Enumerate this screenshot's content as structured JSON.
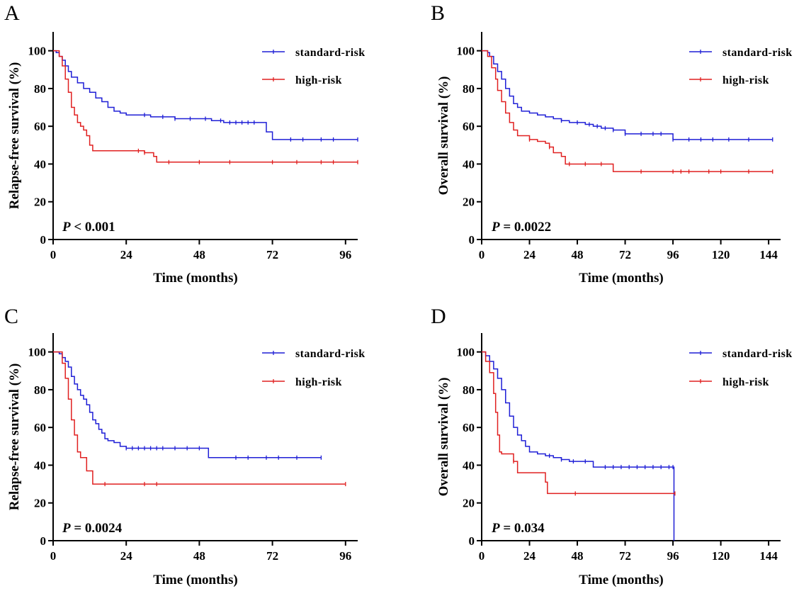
{
  "colors": {
    "standard": "#1f1fd6",
    "high": "#e02020",
    "axis": "#000000"
  },
  "chart_data": [
    {
      "panel": "A",
      "type": "line",
      "xlabel": "Time (months)",
      "ylabel": "Relapse-free survival (%)",
      "xlim": [
        0,
        100
      ],
      "ylim": [
        0,
        110
      ],
      "xticks": [
        0,
        24,
        48,
        72,
        96
      ],
      "yticks": [
        0,
        20,
        40,
        60,
        80,
        100
      ],
      "p_label": "P",
      "p_text": " < 0.001",
      "legend_position": "top-right",
      "series": [
        {
          "name": "standard-risk",
          "color": "#1f1fd6",
          "x": [
            0,
            1,
            2,
            3,
            4,
            5,
            6,
            8,
            10,
            12,
            14,
            16,
            18,
            20,
            22,
            24,
            28,
            32,
            36,
            40,
            44,
            48,
            52,
            56,
            60,
            64,
            69,
            70,
            72,
            84,
            100
          ],
          "y": [
            100,
            99,
            97,
            95,
            92,
            89,
            86,
            83,
            80,
            78,
            75,
            73,
            70,
            68,
            67,
            66,
            66,
            65,
            65,
            64,
            64,
            64,
            63,
            62,
            62,
            62,
            62,
            57,
            53,
            53,
            53
          ],
          "censor_x": [
            30,
            36,
            40,
            45,
            50,
            55,
            58,
            60,
            62,
            64,
            66,
            78,
            82,
            88,
            92,
            100
          ]
        },
        {
          "name": "high-risk",
          "color": "#e02020",
          "x": [
            0,
            2,
            3,
            4,
            5,
            6,
            7,
            8,
            9,
            10,
            11,
            12,
            13,
            20,
            28,
            30,
            33,
            34,
            40,
            60,
            80,
            100
          ],
          "y": [
            100,
            97,
            92,
            85,
            78,
            70,
            66,
            62,
            60,
            58,
            55,
            50,
            47,
            47,
            47,
            46,
            44,
            41,
            41,
            41,
            41,
            41
          ],
          "censor_x": [
            28,
            30,
            38,
            48,
            58,
            72,
            80,
            88,
            92,
            100
          ]
        }
      ]
    },
    {
      "panel": "B",
      "type": "line",
      "xlabel": "Time (months)",
      "ylabel": "Overall survival (%)",
      "xlim": [
        0,
        150
      ],
      "ylim": [
        0,
        110
      ],
      "xticks": [
        0,
        24,
        48,
        72,
        96,
        120,
        144
      ],
      "yticks": [
        0,
        20,
        40,
        60,
        80,
        100
      ],
      "p_label": "P",
      "p_text": " = 0.0022",
      "legend_position": "top-right",
      "series": [
        {
          "name": "standard-risk",
          "color": "#1f1fd6",
          "x": [
            0,
            3,
            4,
            6,
            8,
            10,
            12,
            14,
            16,
            18,
            20,
            24,
            28,
            32,
            36,
            40,
            44,
            48,
            52,
            56,
            60,
            66,
            72,
            84,
            90,
            96,
            110,
            130,
            146
          ],
          "y": [
            100,
            99,
            97,
            93,
            89,
            85,
            80,
            76,
            72,
            70,
            68,
            67,
            66,
            65,
            64,
            63,
            62,
            62,
            61,
            60,
            59,
            58,
            56,
            56,
            56,
            53,
            53,
            53,
            53
          ],
          "censor_x": [
            40,
            48,
            54,
            58,
            62,
            66,
            72,
            80,
            86,
            90,
            96,
            104,
            110,
            116,
            124,
            134,
            146
          ]
        },
        {
          "name": "high-risk",
          "color": "#e02020",
          "x": [
            0,
            3,
            5,
            7,
            8,
            10,
            12,
            14,
            16,
            18,
            24,
            28,
            32,
            34,
            36,
            40,
            42,
            48,
            56,
            64,
            66,
            80,
            100,
            120,
            146
          ],
          "y": [
            100,
            97,
            91,
            85,
            79,
            73,
            67,
            62,
            58,
            55,
            53,
            52,
            51,
            49,
            46,
            44,
            40,
            40,
            40,
            40,
            36,
            36,
            36,
            36,
            36
          ],
          "censor_x": [
            24,
            34,
            44,
            52,
            60,
            80,
            96,
            100,
            104,
            114,
            120,
            134,
            146
          ]
        }
      ]
    },
    {
      "panel": "C",
      "type": "line",
      "xlabel": "Time (months)",
      "ylabel": "Relapse-free survival (%)",
      "xlim": [
        0,
        100
      ],
      "ylim": [
        0,
        110
      ],
      "xticks": [
        0,
        24,
        48,
        72,
        96
      ],
      "yticks": [
        0,
        20,
        40,
        60,
        80,
        100
      ],
      "p_label": "P",
      "p_text": " = 0.0024",
      "legend_position": "top-right",
      "series": [
        {
          "name": "standard-risk",
          "color": "#1f1fd6",
          "x": [
            0,
            2,
            3,
            4,
            5,
            6,
            7,
            8,
            9,
            10,
            11,
            12,
            13,
            14,
            15,
            16,
            17,
            18,
            20,
            22,
            24,
            30,
            40,
            50,
            51,
            60,
            70,
            80,
            88
          ],
          "y": [
            100,
            99,
            97,
            95,
            92,
            87,
            83,
            80,
            77,
            75,
            72,
            68,
            64,
            62,
            59,
            57,
            54,
            53,
            52,
            50,
            49,
            49,
            49,
            49,
            44,
            44,
            44,
            44,
            44
          ],
          "censor_x": [
            24,
            26,
            28,
            30,
            32,
            34,
            36,
            40,
            44,
            48,
            60,
            64,
            70,
            74,
            80,
            88
          ]
        },
        {
          "name": "high-risk",
          "color": "#e02020",
          "x": [
            0,
            3,
            4,
            5,
            6,
            7,
            8,
            9,
            10,
            11,
            12,
            13,
            20,
            40,
            60,
            80,
            96
          ],
          "y": [
            100,
            94,
            86,
            75,
            64,
            56,
            47,
            44,
            44,
            37,
            37,
            30,
            30,
            30,
            30,
            30,
            30
          ],
          "censor_x": [
            17,
            30,
            34,
            96
          ]
        }
      ]
    },
    {
      "panel": "D",
      "type": "line",
      "xlabel": "Time (months)",
      "ylabel": "Overall survival (%)",
      "xlim": [
        0,
        150
      ],
      "ylim": [
        0,
        110
      ],
      "xticks": [
        0,
        24,
        48,
        72,
        96,
        120,
        144
      ],
      "yticks": [
        0,
        20,
        40,
        60,
        80,
        100
      ],
      "p_label": "P",
      "p_text": " = 0.034",
      "legend_position": "top-right",
      "series": [
        {
          "name": "standard-risk",
          "color": "#1f1fd6",
          "x": [
            0,
            2,
            4,
            6,
            8,
            10,
            12,
            14,
            16,
            18,
            20,
            22,
            24,
            28,
            32,
            36,
            40,
            44,
            48,
            52,
            56,
            60,
            70,
            80,
            90,
            96,
            96.5
          ],
          "y": [
            100,
            98,
            95,
            91,
            86,
            80,
            73,
            66,
            60,
            56,
            53,
            50,
            47,
            46,
            45,
            44,
            43,
            42,
            42,
            42,
            39,
            39,
            39,
            39,
            39,
            39,
            0
          ],
          "censor_x": [
            34,
            40,
            46,
            52,
            62,
            66,
            70,
            74,
            78,
            82,
            86,
            90,
            94,
            96
          ]
        },
        {
          "name": "high-risk",
          "color": "#e02020",
          "x": [
            0,
            2,
            4,
            6,
            7,
            8,
            9,
            10,
            12,
            16,
            18,
            24,
            30,
            32,
            33,
            40,
            60,
            80,
            97
          ],
          "y": [
            100,
            95,
            89,
            78,
            68,
            56,
            47,
            46,
            46,
            42,
            36,
            36,
            36,
            31,
            25,
            25,
            25,
            25,
            25
          ],
          "censor_x": [
            16,
            47,
            97
          ]
        }
      ]
    }
  ]
}
